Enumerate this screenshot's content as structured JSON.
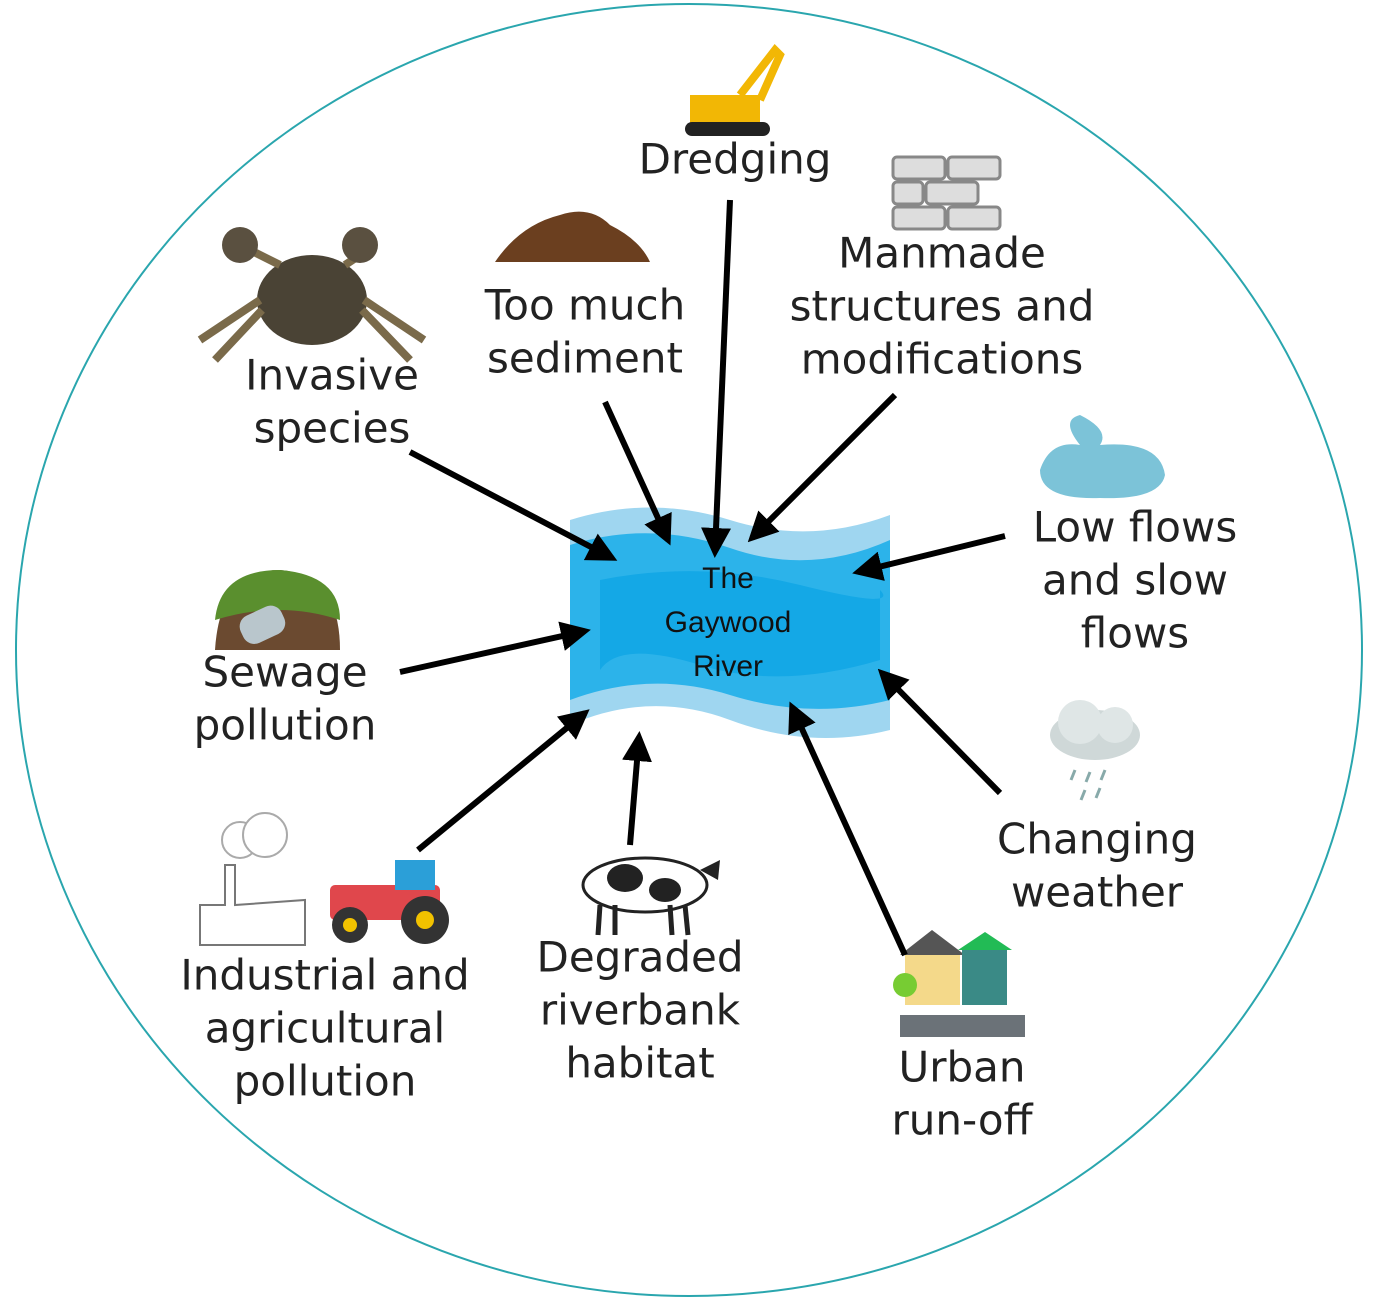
{
  "center": {
    "lines": [
      "The",
      "Gaywood",
      "River"
    ]
  },
  "nodes": [
    {
      "lines": [
        "Dredging"
      ]
    },
    {
      "lines": [
        "Too much",
        "sediment"
      ]
    },
    {
      "lines": [
        "Manmade",
        "structures and",
        "modifications"
      ]
    },
    {
      "lines": [
        "Invasive",
        "species"
      ]
    },
    {
      "lines": [
        "Low flows",
        "and slow",
        "flows"
      ]
    },
    {
      "lines": [
        "Sewage",
        "pollution"
      ]
    },
    {
      "lines": [
        "Changing",
        "weather"
      ]
    },
    {
      "lines": [
        "Industrial and",
        "agricultural",
        "pollution"
      ]
    },
    {
      "lines": [
        "Degraded",
        "riverbank",
        "habitat"
      ]
    },
    {
      "lines": [
        "Urban",
        "run-off"
      ]
    }
  ]
}
